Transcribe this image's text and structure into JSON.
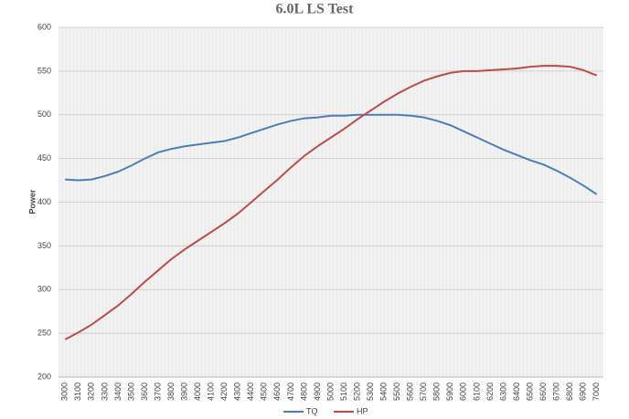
{
  "chart_data": {
    "type": "line",
    "title": "6.0L LS Test",
    "y_label": "Power",
    "categories": [
      "3000",
      "3100",
      "3200",
      "3300",
      "3400",
      "3500",
      "3600",
      "3700",
      "3800",
      "3900",
      "4000",
      "4100",
      "4200",
      "4300",
      "4400",
      "4500",
      "4600",
      "4700",
      "4800",
      "4900",
      "5000",
      "5100",
      "5200",
      "5300",
      "5400",
      "5500",
      "5600",
      "5700",
      "5800",
      "5900",
      "6000",
      "6100",
      "6200",
      "6300",
      "6400",
      "6500",
      "6600",
      "6700",
      "6800",
      "6900",
      "7000"
    ],
    "series": [
      {
        "name": "TQ",
        "color": "#4a7ebb",
        "values": [
          426,
          425,
          426,
          430,
          435,
          442,
          450,
          457,
          461,
          464,
          466,
          468,
          470,
          474,
          479,
          484,
          489,
          493,
          496,
          497,
          499,
          499,
          500,
          500,
          500,
          500,
          499,
          497,
          493,
          488,
          481,
          474,
          467,
          460,
          454,
          448,
          443,
          436,
          428,
          419,
          409
        ]
      },
      {
        "name": "HP",
        "color": "#be4b48",
        "values": [
          243,
          251,
          260,
          271,
          282,
          295,
          309,
          322,
          335,
          346,
          356,
          366,
          376,
          387,
          400,
          413,
          426,
          440,
          453,
          464,
          474,
          484,
          495,
          505,
          515,
          524,
          532,
          539,
          544,
          548,
          550,
          550,
          551,
          552,
          553,
          555,
          556,
          556,
          555,
          551,
          545
        ]
      }
    ],
    "ylim": [
      200,
      600
    ],
    "yticks": [
      200,
      250,
      300,
      350,
      400,
      450,
      500,
      550,
      600
    ],
    "grid": true,
    "legend": "bottom"
  }
}
